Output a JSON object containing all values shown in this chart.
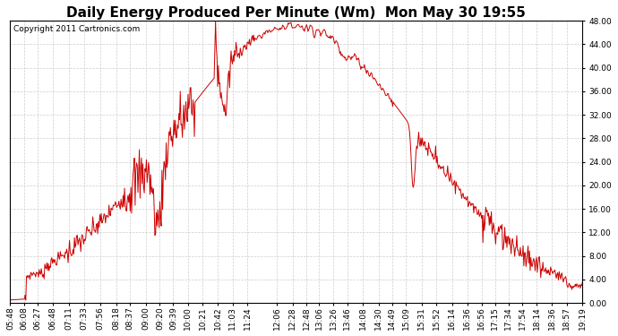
{
  "title": "Daily Energy Produced Per Minute (Wm)  Mon May 30 19:55",
  "copyright": "Copyright 2011 Cartronics.com",
  "line_color": "#cc0000",
  "background_color": "#ffffff",
  "plot_bg_color": "#ffffff",
  "grid_color": "#c8c8c8",
  "ylim": [
    0.0,
    48.0
  ],
  "yticks": [
    0.0,
    4.0,
    8.0,
    12.0,
    16.0,
    20.0,
    24.0,
    28.0,
    32.0,
    36.0,
    40.0,
    44.0,
    48.0
  ],
  "xtick_labels": [
    "05:48",
    "06:08",
    "06:27",
    "06:48",
    "07:11",
    "07:33",
    "07:56",
    "08:18",
    "08:37",
    "09:00",
    "09:20",
    "09:39",
    "10:00",
    "10:21",
    "10:42",
    "11:03",
    "11:24",
    "12:06",
    "12:28",
    "12:48",
    "13:06",
    "13:26",
    "13:46",
    "14:08",
    "14:30",
    "14:49",
    "15:09",
    "15:31",
    "15:52",
    "16:14",
    "16:36",
    "16:56",
    "17:15",
    "17:34",
    "17:54",
    "18:14",
    "18:36",
    "18:57",
    "19:19"
  ],
  "title_fontsize": 11,
  "tick_fontsize": 6.5,
  "copyright_fontsize": 6.5
}
